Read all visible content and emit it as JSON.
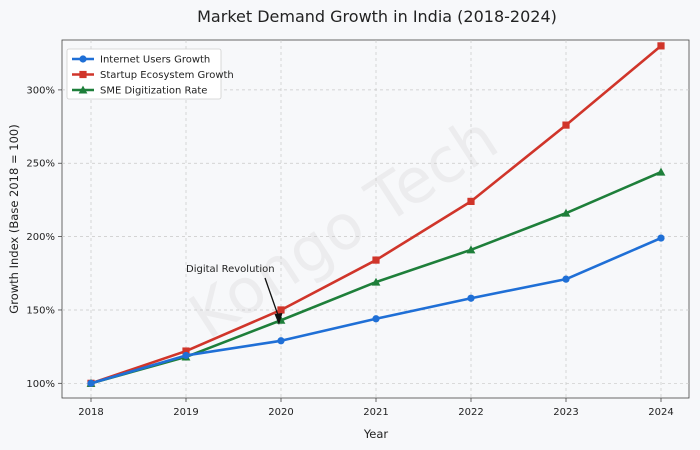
{
  "chart_data": {
    "type": "line",
    "title": "Market Demand Growth in India (2018-2024)",
    "xlabel": "Year",
    "ylabel": "Growth Index (Base 2018 = 100)",
    "x": [
      "2018",
      "2019",
      "2020",
      "2021",
      "2022",
      "2023",
      "2024"
    ],
    "ylim": [
      90,
      334
    ],
    "yticks": [
      100,
      150,
      200,
      250,
      300
    ],
    "ytick_labels": [
      "100%",
      "150%",
      "200%",
      "250%",
      "300%"
    ],
    "grid": true,
    "legend_position": "top-left",
    "series": [
      {
        "name": "Internet Users Growth",
        "color": "#1f6fd6",
        "marker": "circle",
        "values": [
          100,
          119,
          129,
          144,
          158,
          171,
          199
        ]
      },
      {
        "name": "Startup Ecosystem Growth",
        "color": "#d0352a",
        "marker": "square",
        "values": [
          100,
          122,
          150,
          184,
          224,
          276,
          330
        ]
      },
      {
        "name": "SME Digitization Rate",
        "color": "#1e7f3a",
        "marker": "triangle",
        "values": [
          100,
          118,
          143,
          169,
          191,
          216,
          244
        ]
      }
    ],
    "annotations": [
      {
        "text": "Digital Revolution",
        "x": "2020",
        "y": 143
      }
    ],
    "watermark": "Kongo Tech"
  }
}
